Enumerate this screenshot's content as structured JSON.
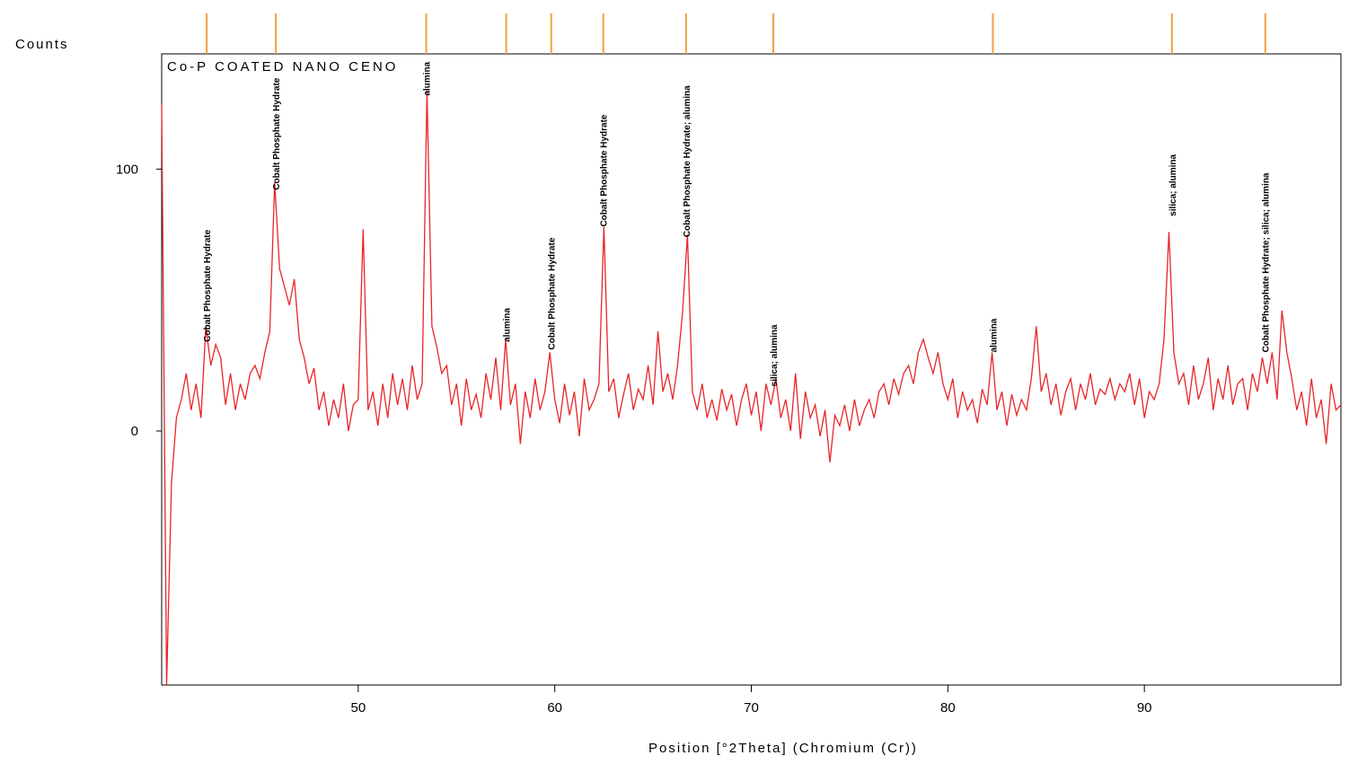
{
  "chart_data": {
    "type": "line",
    "title": "Co-P COATED NANO CENO",
    "y_label": "Counts",
    "x_label": "Position [°2Theta] (Chromium (Cr))",
    "xlim": [
      40,
      100
    ],
    "ylim": [
      -97,
      144
    ],
    "xticks": [
      50,
      60,
      70,
      80,
      90
    ],
    "yticks": [
      0,
      100
    ],
    "reference_color": "#f0a040",
    "reference_lines": [
      42.29,
      45.81,
      53.46,
      57.53,
      59.82,
      62.47,
      66.68,
      71.12,
      82.29,
      91.4,
      96.15
    ],
    "annotations": [
      {
        "text": "Cobalt Phosphate Hydrate",
        "x": 42.29,
        "y": 34
      },
      {
        "text": "Cobalt Phosphate Hydrate",
        "x": 45.81,
        "y": 92
      },
      {
        "text": "alumina",
        "x": 53.46,
        "y": 128
      },
      {
        "text": "alumina",
        "x": 57.53,
        "y": 34
      },
      {
        "text": "Cobalt Phosphate Hydrate",
        "x": 59.82,
        "y": 31
      },
      {
        "text": "Cobalt Phosphate Hydrate",
        "x": 62.47,
        "y": 78
      },
      {
        "text": "Cobalt Phosphate Hydrate; alumina",
        "x": 66.68,
        "y": 74
      },
      {
        "text": "silica; alumina",
        "x": 71.12,
        "y": 17
      },
      {
        "text": "alumina",
        "x": 82.29,
        "y": 30
      },
      {
        "text": "silica; alumina",
        "x": 91.4,
        "y": 82
      },
      {
        "text": "Cobalt Phosphate Hydrate; silica; alumina",
        "x": 96.15,
        "y": 30
      }
    ],
    "x": [
      40,
      40.25,
      40.5,
      40.75,
      41,
      41.25,
      41.5,
      41.75,
      42,
      42.25,
      42.5,
      42.75,
      43,
      43.25,
      43.5,
      43.75,
      44,
      44.25,
      44.5,
      44.75,
      45,
      45.25,
      45.5,
      45.75,
      46,
      46.25,
      46.5,
      46.75,
      47,
      47.25,
      47.5,
      47.75,
      48,
      48.25,
      48.5,
      48.75,
      49,
      49.25,
      49.5,
      49.75,
      50,
      50.25,
      50.5,
      50.75,
      51,
      51.25,
      51.5,
      51.75,
      52,
      52.25,
      52.5,
      52.75,
      53,
      53.25,
      53.5,
      53.75,
      54,
      54.25,
      54.5,
      54.75,
      55,
      55.25,
      55.5,
      55.75,
      56,
      56.25,
      56.5,
      56.75,
      57,
      57.25,
      57.5,
      57.75,
      58,
      58.25,
      58.5,
      58.75,
      59,
      59.25,
      59.5,
      59.75,
      60,
      60.25,
      60.5,
      60.75,
      61,
      61.25,
      61.5,
      61.75,
      62,
      62.25,
      62.5,
      62.75,
      63,
      63.25,
      63.5,
      63.75,
      64,
      64.25,
      64.5,
      64.75,
      65,
      65.25,
      65.5,
      65.75,
      66,
      66.25,
      66.5,
      66.75,
      67,
      67.25,
      67.5,
      67.75,
      68,
      68.25,
      68.5,
      68.75,
      69,
      69.25,
      69.5,
      69.75,
      70,
      70.25,
      70.5,
      70.75,
      71,
      71.25,
      71.5,
      71.75,
      72,
      72.25,
      72.5,
      72.75,
      73,
      73.25,
      73.5,
      73.75,
      74,
      74.25,
      74.5,
      74.75,
      75,
      75.25,
      75.5,
      75.75,
      76,
      76.25,
      76.5,
      76.75,
      77,
      77.25,
      77.5,
      77.75,
      78,
      78.25,
      78.5,
      78.75,
      79,
      79.25,
      79.5,
      79.75,
      80,
      80.25,
      80.5,
      80.75,
      81,
      81.25,
      81.5,
      81.75,
      82,
      82.25,
      82.5,
      82.75,
      83,
      83.25,
      83.5,
      83.75,
      84,
      84.25,
      84.5,
      84.75,
      85,
      85.25,
      85.5,
      85.75,
      86,
      86.25,
      86.5,
      86.75,
      87,
      87.25,
      87.5,
      87.75,
      88,
      88.25,
      88.5,
      88.75,
      89,
      89.25,
      89.5,
      89.75,
      90,
      90.25,
      90.5,
      90.75,
      91,
      91.25,
      91.5,
      91.75,
      92,
      92.25,
      92.5,
      92.75,
      93,
      93.25,
      93.5,
      93.75,
      94,
      94.25,
      94.5,
      94.75,
      95,
      95.25,
      95.5,
      95.75,
      96,
      96.25,
      96.5,
      96.75,
      97,
      97.25,
      97.5,
      97.75,
      98,
      98.25,
      98.5,
      98.75,
      99,
      99.25,
      99.5,
      99.75,
      100
    ],
    "series": [
      {
        "name": "Co-P COATED NANO CENO",
        "color": "#e8252a",
        "values": [
          125,
          -97,
          -20,
          5,
          12,
          22,
          8,
          18,
          5,
          40,
          25,
          33,
          28,
          10,
          22,
          8,
          18,
          12,
          22,
          25,
          20,
          30,
          38,
          95,
          62,
          55,
          48,
          58,
          35,
          28,
          18,
          24,
          8,
          15,
          2,
          12,
          5,
          18,
          0,
          10,
          12,
          77,
          8,
          15,
          2,
          18,
          5,
          22,
          10,
          20,
          8,
          25,
          12,
          18,
          130,
          40,
          32,
          22,
          25,
          10,
          18,
          2,
          20,
          8,
          14,
          5,
          22,
          12,
          28,
          8,
          35,
          10,
          18,
          -5,
          15,
          5,
          20,
          8,
          15,
          30,
          12,
          3,
          18,
          6,
          15,
          -2,
          20,
          8,
          12,
          18,
          78,
          15,
          20,
          5,
          14,
          22,
          8,
          16,
          12,
          25,
          10,
          38,
          15,
          22,
          12,
          25,
          45,
          75,
          15,
          8,
          18,
          5,
          12,
          4,
          16,
          8,
          14,
          2,
          12,
          18,
          6,
          15,
          0,
          18,
          10,
          20,
          5,
          12,
          0,
          22,
          -3,
          15,
          5,
          10,
          -2,
          8,
          -12,
          6,
          2,
          10,
          0,
          12,
          2,
          8,
          12,
          5,
          15,
          18,
          10,
          20,
          14,
          22,
          25,
          18,
          30,
          35,
          28,
          22,
          30,
          18,
          12,
          20,
          5,
          15,
          8,
          12,
          3,
          16,
          10,
          30,
          8,
          15,
          2,
          14,
          6,
          12,
          8,
          20,
          40,
          15,
          22,
          10,
          18,
          6,
          15,
          20,
          8,
          18,
          12,
          22,
          10,
          16,
          14,
          20,
          12,
          18,
          15,
          22,
          10,
          20,
          5,
          15,
          12,
          18,
          35,
          76,
          30,
          18,
          22,
          10,
          25,
          12,
          18,
          28,
          8,
          20,
          12,
          25,
          10,
          18,
          20,
          8,
          22,
          15,
          28,
          18,
          30,
          12,
          46,
          30,
          20,
          8,
          15,
          2,
          20,
          5,
          12,
          -5,
          18,
          8,
          10
        ]
      }
    ]
  }
}
